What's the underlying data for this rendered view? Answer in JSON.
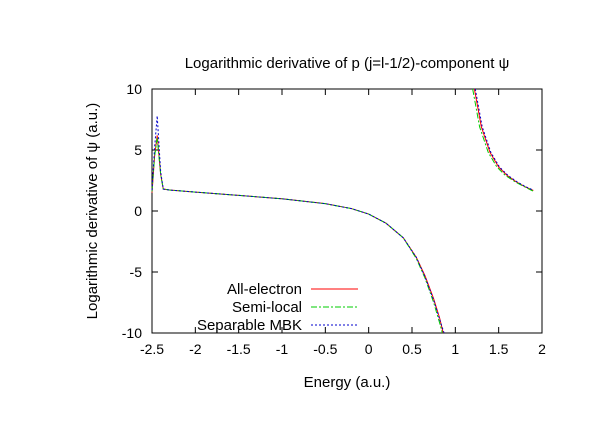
{
  "chart_data": {
    "type": "line",
    "title": "Logarithmic derivative of p (j=l-1/2)-component ψ",
    "xlabel": "Energy (a.u.)",
    "ylabel": "Logarithmic derivative of ψ (a.u.)",
    "xlim": [
      -2.5,
      2
    ],
    "ylim": [
      -10,
      10
    ],
    "x_ticks": [
      -2.5,
      -2,
      -1.5,
      -1,
      -0.5,
      0,
      0.5,
      1,
      1.5,
      2
    ],
    "x_tick_labels": [
      "-2.5",
      "-2",
      "-1.5",
      "-1",
      "-0.5",
      "0",
      "0.5",
      "1",
      "1.5",
      "2"
    ],
    "y_ticks": [
      -10,
      -5,
      0,
      5,
      10
    ],
    "y_tick_labels": [
      "-10",
      "-5",
      "0",
      "5",
      "10"
    ],
    "grid": false,
    "legend_position": "bottom-left",
    "series": [
      {
        "name": "All-electron",
        "color": "#ff0000",
        "dash": "solid",
        "segments": [
          [
            [
              -2.5,
              1.5
            ],
            [
              -2.47,
              4.5
            ],
            [
              -2.44,
              6.2
            ],
            [
              -2.4,
              3.0
            ],
            [
              -2.37,
              1.8
            ],
            [
              -2.3,
              1.72
            ],
            [
              -2.0,
              1.55
            ],
            [
              -1.5,
              1.28
            ],
            [
              -1.0,
              1.0
            ],
            [
              -0.5,
              0.6
            ],
            [
              -0.2,
              0.2
            ],
            [
              0.0,
              -0.25
            ],
            [
              0.2,
              -1.0
            ],
            [
              0.4,
              -2.2
            ],
            [
              0.55,
              -3.8
            ],
            [
              0.65,
              -5.3
            ],
            [
              0.75,
              -7.2
            ],
            [
              0.82,
              -8.8
            ],
            [
              0.86,
              -10.0
            ]
          ],
          [
            [
              1.22,
              10.0
            ],
            [
              1.3,
              6.9
            ],
            [
              1.4,
              4.8
            ],
            [
              1.5,
              3.6
            ],
            [
              1.6,
              2.9
            ],
            [
              1.7,
              2.4
            ],
            [
              1.8,
              2.0
            ],
            [
              1.9,
              1.68
            ]
          ]
        ]
      },
      {
        "name": "Semi-local",
        "color": "#00cc00",
        "dash": "6,2,2,2",
        "segments": [
          [
            [
              -2.5,
              1.6
            ],
            [
              -2.47,
              4.5
            ],
            [
              -2.44,
              6.0
            ],
            [
              -2.4,
              3.0
            ],
            [
              -2.37,
              1.8
            ],
            [
              -2.3,
              1.72
            ],
            [
              -2.0,
              1.55
            ],
            [
              -1.5,
              1.28
            ],
            [
              -1.0,
              1.0
            ],
            [
              -0.5,
              0.6
            ],
            [
              -0.2,
              0.2
            ],
            [
              0.0,
              -0.25
            ],
            [
              0.2,
              -1.0
            ],
            [
              0.4,
              -2.2
            ],
            [
              0.55,
              -3.9
            ],
            [
              0.65,
              -5.5
            ],
            [
              0.75,
              -7.5
            ],
            [
              0.82,
              -9.2
            ],
            [
              0.85,
              -10.0
            ]
          ],
          [
            [
              1.2,
              10.0
            ],
            [
              1.28,
              6.9
            ],
            [
              1.38,
              4.8
            ],
            [
              1.48,
              3.6
            ],
            [
              1.58,
              2.9
            ],
            [
              1.7,
              2.35
            ],
            [
              1.8,
              1.98
            ],
            [
              1.9,
              1.62
            ]
          ]
        ]
      },
      {
        "name": "Separable MBK",
        "color": "#0000cc",
        "dash": "2,2",
        "segments": [
          [
            [
              -2.5,
              1.7
            ],
            [
              -2.47,
              5.2
            ],
            [
              -2.44,
              7.8
            ],
            [
              -2.4,
              3.2
            ],
            [
              -2.37,
              1.8
            ],
            [
              -2.3,
              1.72
            ],
            [
              -2.0,
              1.55
            ],
            [
              -1.5,
              1.28
            ],
            [
              -1.0,
              1.0
            ],
            [
              -0.5,
              0.6
            ],
            [
              -0.2,
              0.2
            ],
            [
              0.0,
              -0.25
            ],
            [
              0.2,
              -1.0
            ],
            [
              0.4,
              -2.2
            ],
            [
              0.55,
              -3.8
            ],
            [
              0.65,
              -5.4
            ],
            [
              0.75,
              -7.3
            ],
            [
              0.82,
              -8.9
            ],
            [
              0.87,
              -10.0
            ]
          ],
          [
            [
              1.23,
              10.0
            ],
            [
              1.31,
              6.9
            ],
            [
              1.41,
              4.8
            ],
            [
              1.51,
              3.6
            ],
            [
              1.61,
              2.9
            ],
            [
              1.71,
              2.4
            ],
            [
              1.81,
              2.0
            ],
            [
              1.9,
              1.7
            ]
          ]
        ]
      }
    ]
  }
}
